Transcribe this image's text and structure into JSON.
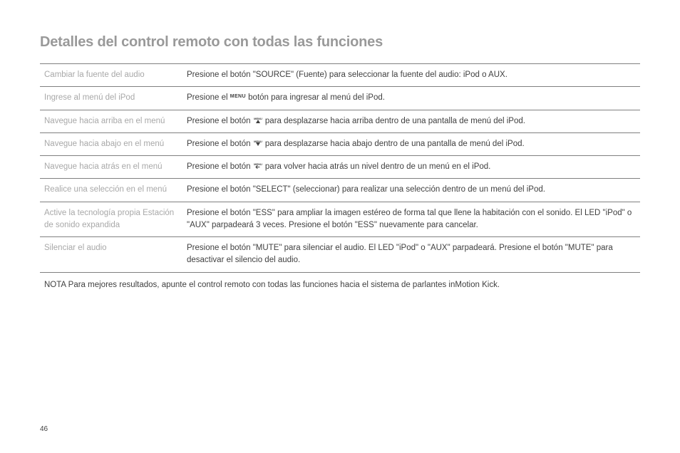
{
  "title": "Detalles del control remoto con todas las funciones",
  "rows": [
    {
      "label": "Cambiar la fuente del audio",
      "desc_pre": "Presione el botón \"SOURCE\" (Fuente) para seleccionar la fuente del audio: iPod o AUX.",
      "desc_icon": null,
      "desc_post": ""
    },
    {
      "label": "Ingrese al menú del iPod",
      "desc_pre": "Presione el ",
      "desc_icon": "menu-text",
      "desc_post": " botón para ingresar al menú del iPod."
    },
    {
      "label": "Navegue hacia arriba en el menú",
      "desc_pre": "Presione el botón ",
      "desc_icon": "menu-up",
      "desc_post": " para desplazarse hacia arriba dentro de una pantalla de menú del iPod."
    },
    {
      "label": "Navegue hacia abajo en el menú",
      "desc_pre": "Presione el botón ",
      "desc_icon": "menu-down",
      "desc_post": " para desplazarse hacia abajo dentro de una pantalla de menú del iPod."
    },
    {
      "label": "Navegue hacia atrás en el menú",
      "desc_pre": "Presione el botón ",
      "desc_icon": "menu-back",
      "desc_post": " para volver hacia atrás un nivel dentro de un menú en el iPod."
    },
    {
      "label": "Realice una selección en el menú",
      "desc_pre": "Presione el botón \"SELECT\" (seleccionar) para realizar una selección dentro de un menú del iPod.",
      "desc_icon": null,
      "desc_post": ""
    },
    {
      "label": "Active la tecnología propia Estación de sonido expandida",
      "desc_pre": "Presione el botón \"ESS\" para ampliar la imagen estéreo de forma tal que llene la habitación con el sonido. El LED \"iPod\" o \"AUX\" parpadeará 3 veces. Presione el botón \"ESS\" nuevamente para cancelar.",
      "desc_icon": null,
      "desc_post": ""
    },
    {
      "label": "Silenciar el audio",
      "desc_pre": "Presione el botón \"MUTE\" para silenciar el audio. El LED \"iPod\" o \"AUX\" parpadeará. Presione el botón \"MUTE\" para desactivar el silencio del audio.",
      "desc_icon": null,
      "desc_post": ""
    }
  ],
  "note_label": "NOTA",
  "note_text": " Para mejores resultados, apunte el control remoto con todas las funciones hacia el sistema de parlantes inMotion Kick.",
  "page_number": "46",
  "colors": {
    "title": "#999999",
    "label_text": "#a8a8a8",
    "desc_text": "#404040",
    "border": "#808080",
    "background": "#ffffff"
  },
  "icons": {
    "menu-text": "MENU",
    "menu-up": "menu-up-icon",
    "menu-down": "menu-down-icon",
    "menu-back": "menu-back-icon"
  }
}
